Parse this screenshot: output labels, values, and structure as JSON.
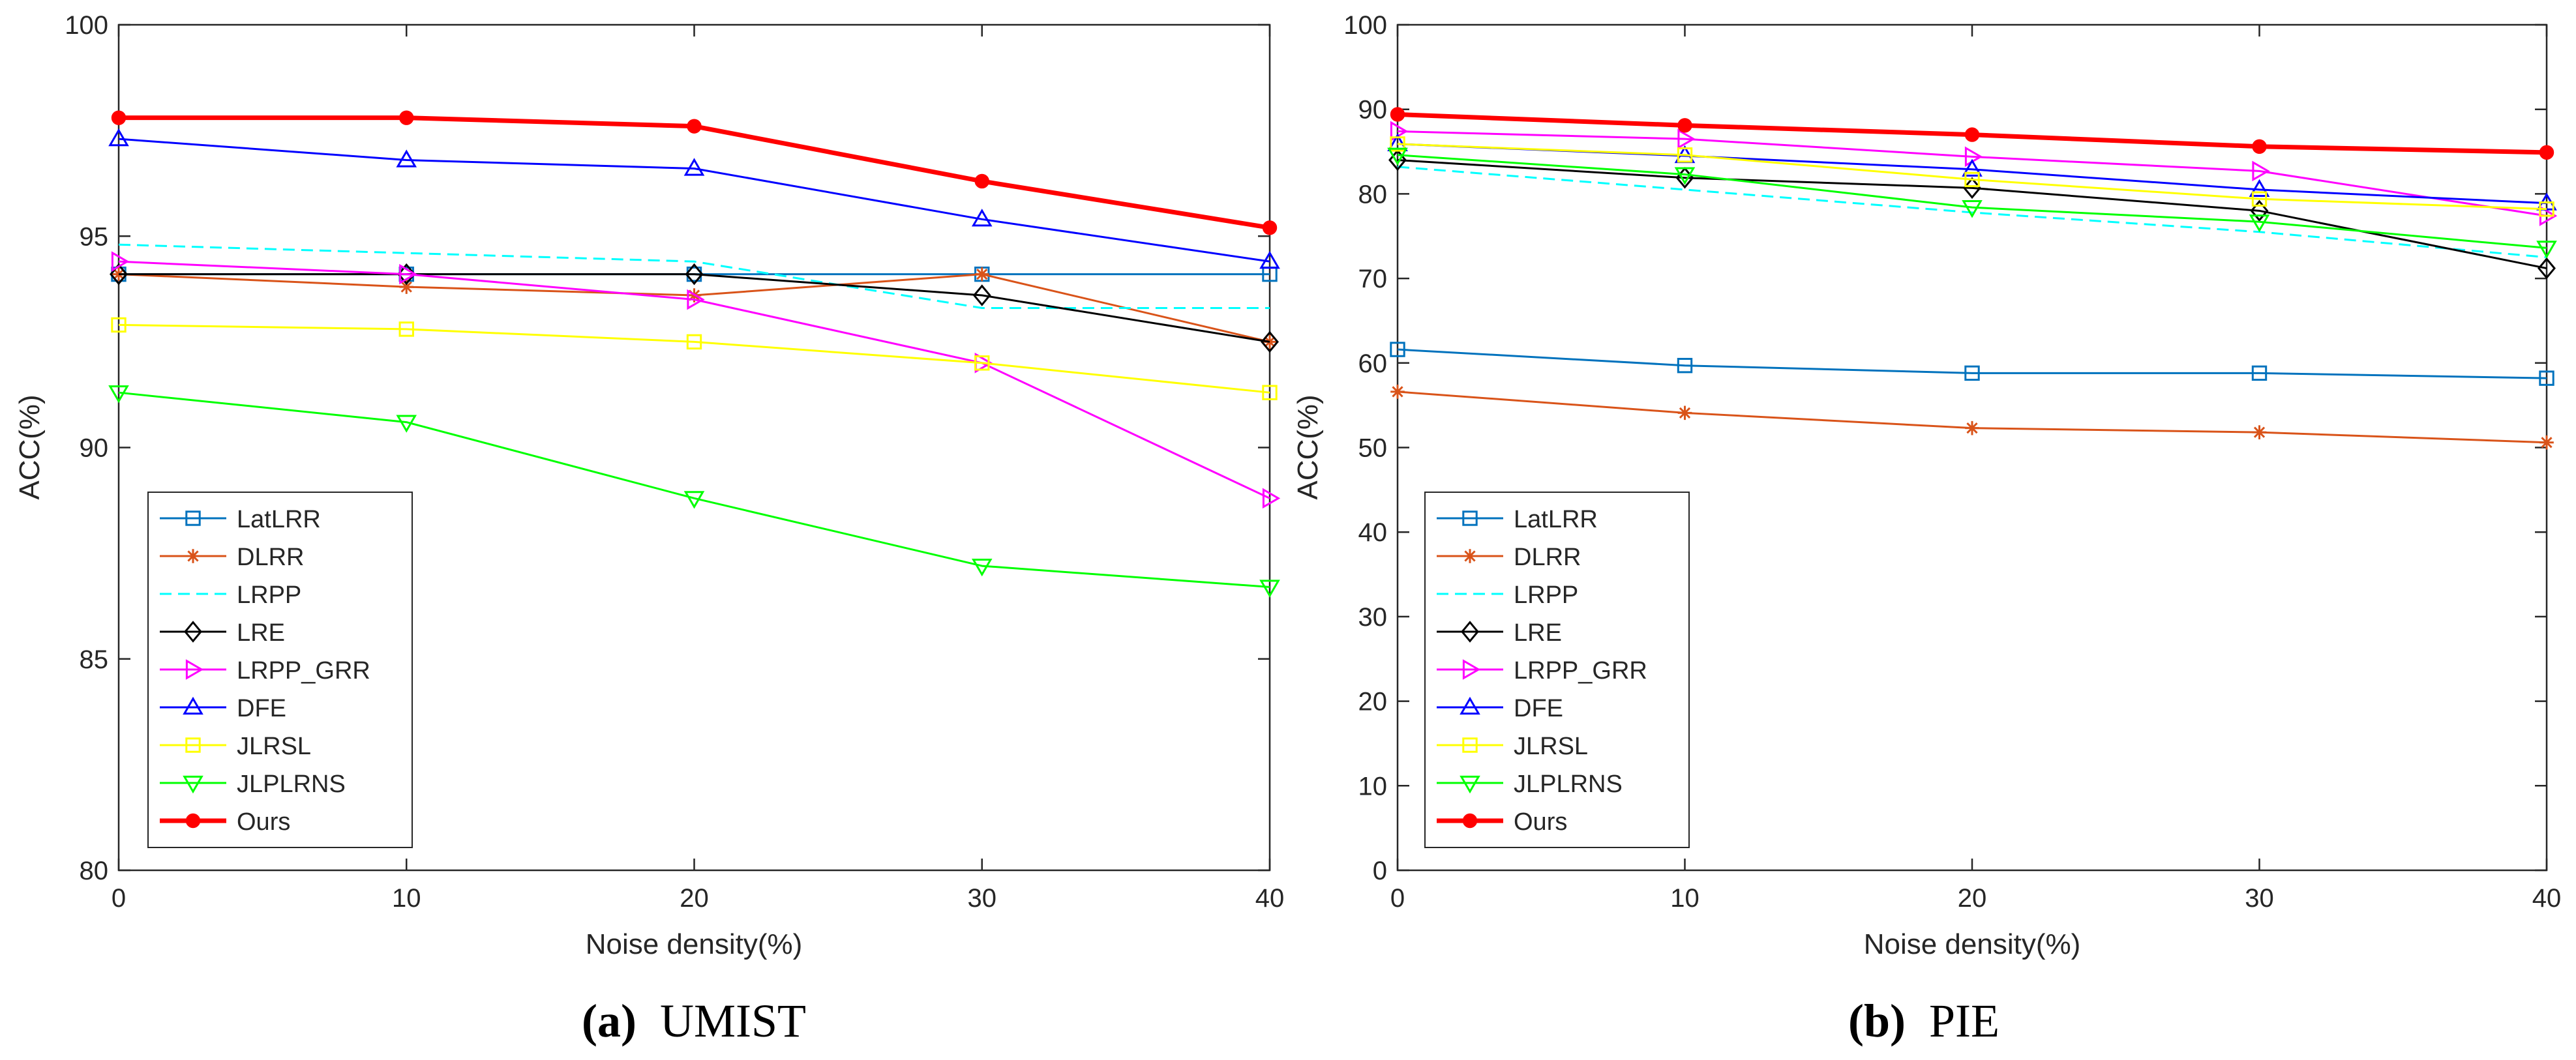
{
  "chart_data": [
    {
      "type": "line",
      "caption": "UMIST",
      "caption_label": "(a)",
      "xlabel": "Noise density(%)",
      "ylabel": "ACC(%)",
      "x": [
        0,
        10,
        20,
        30,
        40
      ],
      "xlim": [
        0,
        40
      ],
      "ylim": [
        80,
        100
      ],
      "xticks": [
        0,
        10,
        20,
        30,
        40
      ],
      "yticks": [
        80,
        85,
        90,
        95,
        100
      ],
      "grid": false,
      "legend_position": "bottom-left",
      "series": [
        {
          "name": "LatLRR",
          "values": [
            94.1,
            94.1,
            94.1,
            94.1,
            94.1
          ],
          "color": "#0072BD",
          "marker": "square",
          "dash": "solid",
          "width": 1
        },
        {
          "name": "DLRR",
          "values": [
            94.1,
            93.8,
            93.6,
            94.1,
            92.5
          ],
          "color": "#D95319",
          "marker": "asterisk",
          "dash": "solid",
          "width": 1
        },
        {
          "name": "LRPP",
          "values": [
            94.8,
            94.6,
            94.4,
            93.3,
            93.3
          ],
          "color": "#00FFFF",
          "marker": "none",
          "dash": "dashed",
          "width": 1
        },
        {
          "name": "LRE",
          "values": [
            94.1,
            94.1,
            94.1,
            93.6,
            92.5
          ],
          "color": "#000000",
          "marker": "diamond",
          "dash": "solid",
          "width": 1
        },
        {
          "name": "LRPP_GRR",
          "values": [
            94.4,
            94.1,
            93.5,
            92.0,
            88.8
          ],
          "color": "#FF00FF",
          "marker": "triangle-right",
          "dash": "solid",
          "width": 1
        },
        {
          "name": "DFE",
          "values": [
            97.3,
            96.8,
            96.6,
            95.4,
            94.4
          ],
          "color": "#0000FF",
          "marker": "triangle-up",
          "dash": "solid",
          "width": 1
        },
        {
          "name": "JLRSL",
          "values": [
            92.9,
            92.8,
            92.5,
            92.0,
            91.3
          ],
          "color": "#FFFF00",
          "marker": "square",
          "dash": "solid",
          "width": 1
        },
        {
          "name": "JLPLRNS",
          "values": [
            91.3,
            90.6,
            88.8,
            87.2,
            86.7
          ],
          "color": "#00FF00",
          "marker": "triangle-down",
          "dash": "solid",
          "width": 1
        },
        {
          "name": "Ours",
          "values": [
            97.8,
            97.8,
            97.6,
            96.3,
            95.2
          ],
          "color": "#FF0000",
          "marker": "filled-circle",
          "dash": "solid",
          "width": 2
        }
      ]
    },
    {
      "type": "line",
      "caption": "PIE",
      "caption_label": "(b)",
      "xlabel": "Noise density(%)",
      "ylabel": "ACC(%)",
      "x": [
        0,
        10,
        20,
        30,
        40
      ],
      "xlim": [
        0,
        40
      ],
      "ylim": [
        0,
        100
      ],
      "xticks": [
        0,
        10,
        20,
        30,
        40
      ],
      "yticks": [
        0,
        10,
        20,
        30,
        40,
        50,
        60,
        70,
        80,
        90,
        100
      ],
      "grid": false,
      "legend_position": "bottom-left",
      "series": [
        {
          "name": "LatLRR",
          "values": [
            61.6,
            59.7,
            58.8,
            58.8,
            58.2
          ],
          "color": "#0072BD",
          "marker": "square",
          "dash": "solid",
          "width": 1
        },
        {
          "name": "DLRR",
          "values": [
            56.6,
            54.1,
            52.3,
            51.8,
            50.6
          ],
          "color": "#D95319",
          "marker": "asterisk",
          "dash": "solid",
          "width": 1
        },
        {
          "name": "LRPP",
          "values": [
            83.2,
            80.5,
            77.8,
            75.5,
            72.5
          ],
          "color": "#00FFFF",
          "marker": "none",
          "dash": "dashed",
          "width": 1
        },
        {
          "name": "LRE",
          "values": [
            84.0,
            81.9,
            80.7,
            78.0,
            71.2
          ],
          "color": "#000000",
          "marker": "diamond",
          "dash": "solid",
          "width": 1
        },
        {
          "name": "LRPP_GRR",
          "values": [
            87.4,
            86.5,
            84.4,
            82.7,
            77.4
          ],
          "color": "#FF00FF",
          "marker": "triangle-right",
          "dash": "solid",
          "width": 1
        },
        {
          "name": "DFE",
          "values": [
            85.9,
            84.5,
            82.9,
            80.5,
            78.9
          ],
          "color": "#0000FF",
          "marker": "triangle-up",
          "dash": "solid",
          "width": 1
        },
        {
          "name": "JLRSL",
          "values": [
            85.9,
            84.6,
            81.7,
            79.4,
            78.2
          ],
          "color": "#FFFF00",
          "marker": "square",
          "dash": "solid",
          "width": 1
        },
        {
          "name": "JLPLRNS",
          "values": [
            84.6,
            82.3,
            78.4,
            76.7,
            73.6
          ],
          "color": "#00FF00",
          "marker": "triangle-down",
          "dash": "solid",
          "width": 1
        },
        {
          "name": "Ours",
          "values": [
            89.4,
            88.1,
            87.0,
            85.6,
            84.9
          ],
          "color": "#FF0000",
          "marker": "filled-circle",
          "dash": "solid",
          "width": 2
        }
      ]
    }
  ]
}
